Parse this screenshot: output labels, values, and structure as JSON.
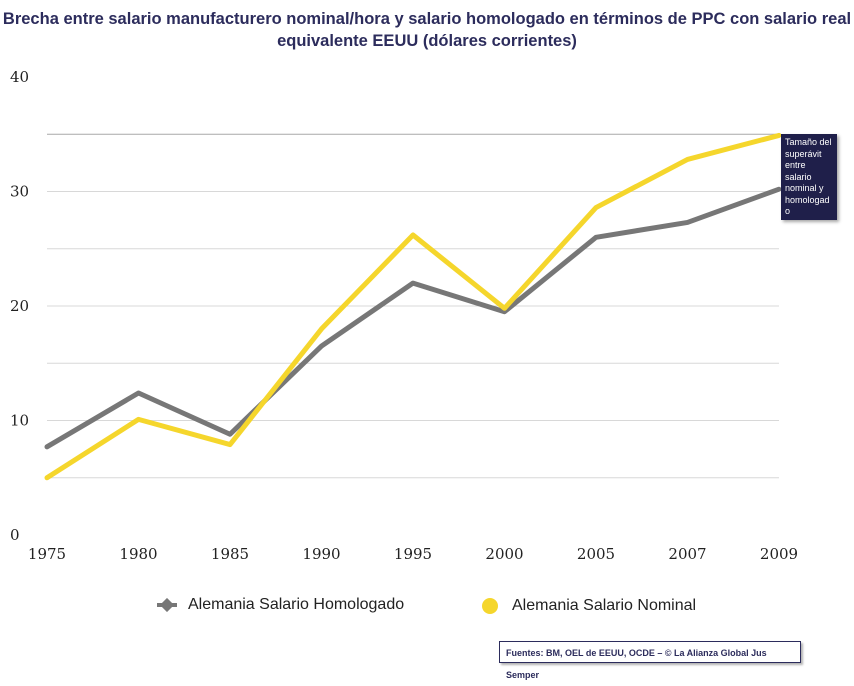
{
  "chart_data": {
    "type": "line",
    "title": "Brecha entre salario manufacturero nominal/hora y salario homologado en términos de PPC con salario real equivalente EEUU (dólares corrientes)",
    "categories": [
      "1975",
      "1980",
      "1985",
      "1990",
      "1995",
      "2000",
      "2005",
      "2007",
      "2009"
    ],
    "yticks": [
      "0",
      "10",
      "20",
      "30",
      "40"
    ],
    "ylim": [
      0,
      40
    ],
    "grid": true,
    "legend_position": "bottom",
    "series": [
      {
        "name": "Alemania Salario Homologado",
        "color": "#777777",
        "marker": "diamond",
        "values": [
          7.7,
          12.4,
          8.8,
          16.5,
          22.0,
          19.5,
          26.0,
          27.3,
          30.2
        ]
      },
      {
        "name": "Alemania Salario Nominal",
        "color": "#f5d62c",
        "marker": "circle",
        "values": [
          5.0,
          10.1,
          7.9,
          18.0,
          26.2,
          19.8,
          28.6,
          32.8,
          34.9
        ]
      }
    ],
    "annotations": [
      {
        "text": "Tamaño del superávit entre salario nominal y homologad o"
      }
    ]
  },
  "source_note": "Fuentes: BM, OEL de EEUU, OCDE – © La Alianza Global Jus Semper"
}
